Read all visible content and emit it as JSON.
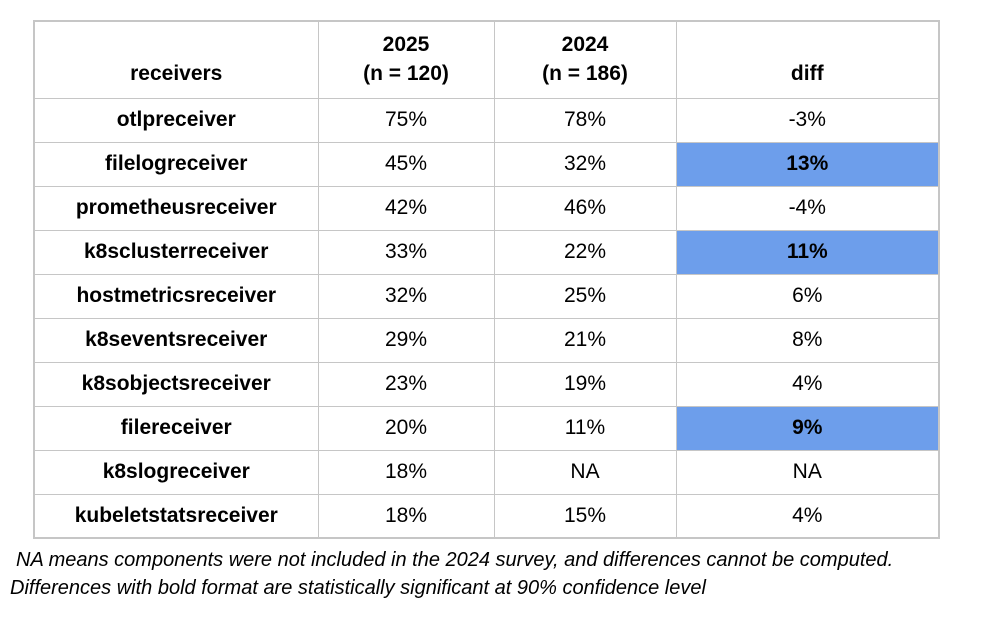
{
  "colors": {
    "highlight": "#6d9eeb",
    "border": "#c6c6c6",
    "text": "#000000",
    "background": "#ffffff"
  },
  "chart_data": {
    "type": "table",
    "columns": [
      "receivers",
      "2025\n(n = 120)",
      "2024\n(n = 186)",
      "diff"
    ],
    "rows": [
      {
        "receiver": "otlpreceiver",
        "pct_2025": "75%",
        "pct_2024": "78%",
        "diff": "-3%",
        "diff_significant": false
      },
      {
        "receiver": "filelogreceiver",
        "pct_2025": "45%",
        "pct_2024": "32%",
        "diff": "13%",
        "diff_significant": true
      },
      {
        "receiver": "prometheusreceiver",
        "pct_2025": "42%",
        "pct_2024": "46%",
        "diff": "-4%",
        "diff_significant": false
      },
      {
        "receiver": "k8sclusterreceiver",
        "pct_2025": "33%",
        "pct_2024": "22%",
        "diff": "11%",
        "diff_significant": true
      },
      {
        "receiver": "hostmetricsreceiver",
        "pct_2025": "32%",
        "pct_2024": "25%",
        "diff": "6%",
        "diff_significant": false
      },
      {
        "receiver": "k8seventsreceiver",
        "pct_2025": "29%",
        "pct_2024": "21%",
        "diff": "8%",
        "diff_significant": false
      },
      {
        "receiver": "k8sobjectsreceiver",
        "pct_2025": "23%",
        "pct_2024": "19%",
        "diff": "4%",
        "diff_significant": false
      },
      {
        "receiver": "filereceiver",
        "pct_2025": "20%",
        "pct_2024": "11%",
        "diff": "9%",
        "diff_significant": true
      },
      {
        "receiver": "k8slogreceiver",
        "pct_2025": "18%",
        "pct_2024": "NA",
        "diff": "NA",
        "diff_significant": false
      },
      {
        "receiver": "kubeletstatsreceiver",
        "pct_2025": "18%",
        "pct_2024": "15%",
        "diff": "4%",
        "diff_significant": false
      }
    ],
    "notes": [
      "NA means components were not included in the 2024 survey, and differences cannot be computed.",
      "Differences with bold format are statistically significant at 90% confidence level"
    ],
    "highlight_color": "#6d9eeb"
  }
}
